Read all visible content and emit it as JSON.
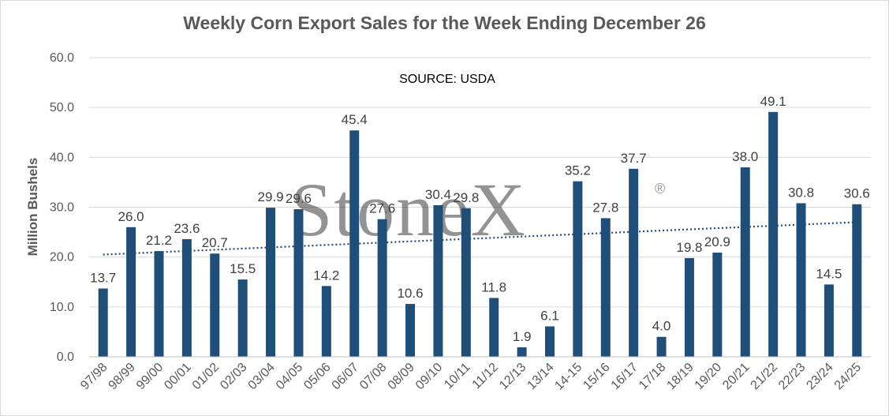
{
  "chart_data": {
    "type": "bar",
    "title": "Weekly Corn Export Sales for the Week Ending December 26",
    "source_note": "SOURCE: USDA",
    "watermark": "StoneX",
    "watermark_mark": "®",
    "ylabel": "Million Bushels",
    "xlabel": "",
    "ylim": [
      0,
      60
    ],
    "yticks": [
      "0.0",
      "10.0",
      "20.0",
      "30.0",
      "40.0",
      "50.0",
      "60.0"
    ],
    "ytick_values": [
      0,
      10,
      20,
      30,
      40,
      50,
      60
    ],
    "categories": [
      "97/98",
      "98/99",
      "99/00",
      "00/01",
      "01/02",
      "02/03",
      "03/04",
      "04/05",
      "05/06",
      "06/07",
      "07/08",
      "08/09",
      "09/10",
      "10/11",
      "11/12",
      "12/13",
      "13/14",
      "14-15",
      "15/16",
      "16/17",
      "17/18",
      "18/19",
      "19/20",
      "20/21",
      "21/22",
      "22/23",
      "23/24",
      "24/25"
    ],
    "values": [
      13.7,
      26.0,
      21.2,
      23.6,
      20.7,
      15.5,
      29.9,
      29.6,
      14.2,
      45.4,
      27.6,
      10.6,
      30.4,
      29.8,
      11.8,
      1.9,
      6.1,
      35.2,
      27.8,
      37.7,
      4.0,
      19.8,
      20.9,
      38.0,
      49.1,
      30.8,
      14.5,
      30.6
    ],
    "data_labels": [
      "13.7",
      "26.0",
      "21.2",
      "23.6",
      "20.7",
      "15.5",
      "29.9",
      "29.6",
      "14.2",
      "45.4",
      "27.6",
      "10.6",
      "30.4",
      "29.8",
      "11.8",
      "1.9",
      "6.1",
      "35.2",
      "27.8",
      "37.7",
      "4.0",
      "19.8",
      "20.9",
      "38.0",
      "49.1",
      "30.8",
      "14.5",
      "30.6"
    ],
    "label_position": [
      "above",
      "above",
      "above",
      "above",
      "above",
      "above",
      "above",
      "above",
      "above",
      "above",
      "above",
      "above",
      "above",
      "above",
      "above",
      "above",
      "above",
      "above",
      "above",
      "above",
      "above",
      "above",
      "above",
      "above",
      "above",
      "above",
      "above",
      "above"
    ],
    "trendline": {
      "type": "linear",
      "style": "dotted",
      "start": 20.5,
      "end": 27.0
    },
    "colors": {
      "bar": "#1F4E79",
      "trend": "#1F4E79",
      "grid": "#d9d9d9",
      "text": "#595959"
    },
    "grid": true,
    "legend": "none"
  }
}
